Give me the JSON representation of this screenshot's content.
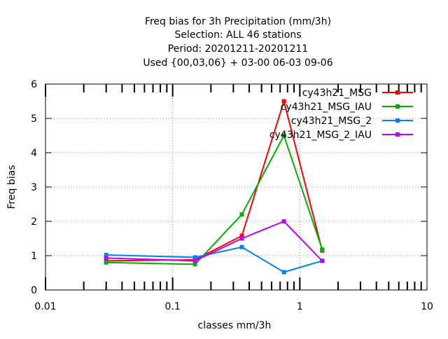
{
  "chart_data": {
    "type": "line",
    "title": [
      "Freq bias  for 3h Precipitation (mm/3h)",
      "Selection: ALL     46 stations",
      "Period: 20201211-20201211",
      "Used {00,03,06} + 03-00 06-03 09-06"
    ],
    "xlabel": "classes mm/3h",
    "ylabel": "Freq bias",
    "x_scale": "log",
    "xlim": [
      0.01,
      10
    ],
    "ylim": [
      0,
      6
    ],
    "x_ticks": [
      {
        "value": 0.01,
        "label": "0.01"
      },
      {
        "value": 0.1,
        "label": "0.1"
      },
      {
        "value": 1,
        "label": "1"
      },
      {
        "value": 10,
        "label": "10"
      }
    ],
    "y_ticks": [
      {
        "value": 0,
        "label": "0"
      },
      {
        "value": 1,
        "label": "1"
      },
      {
        "value": 2,
        "label": "2"
      },
      {
        "value": 3,
        "label": "3"
      },
      {
        "value": 4,
        "label": "4"
      },
      {
        "value": 5,
        "label": "5"
      },
      {
        "value": 6,
        "label": "6"
      }
    ],
    "grid": true,
    "legend_position": "top-right",
    "x": [
      0.03,
      0.15,
      0.35,
      0.75,
      1.5
    ],
    "series": [
      {
        "name": "cy43h21_MSG",
        "color": "#ff0000",
        "values": [
          0.85,
          0.88,
          1.58,
          5.5,
          1.15
        ]
      },
      {
        "name": "cy43h21_MSG_IAU",
        "color": "#00b000",
        "values": [
          0.8,
          0.75,
          2.2,
          4.5,
          1.18
        ]
      },
      {
        "name": "cy43h21_MSG_2",
        "color": "#0080ff",
        "values": [
          1.02,
          0.95,
          1.25,
          0.52,
          0.85
        ]
      },
      {
        "name": "cy43h21_MSG_2_IAU",
        "color": "#c000ff",
        "values": [
          0.93,
          0.85,
          1.5,
          2.0,
          0.85
        ]
      }
    ]
  }
}
